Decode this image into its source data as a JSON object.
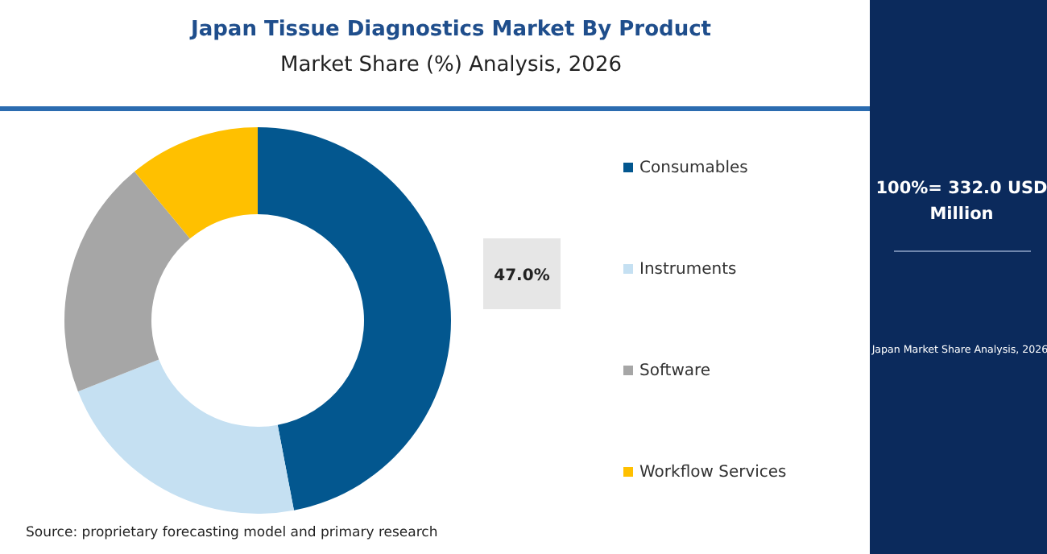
{
  "chart_data": {
    "type": "donut",
    "title": "Japan Tissue Diagnostics Market By Product",
    "subtitle": "Market Share (%) Analysis, 2026",
    "categories": [
      "Consumables",
      "Instruments",
      "Software",
      "Workflow Services"
    ],
    "values": [
      47,
      22,
      20,
      11
    ],
    "colors": [
      "#03578f",
      "#c5e0f2",
      "#a6a6a6",
      "#ffc000"
    ],
    "value_labels": [
      "47.0%",
      null,
      null,
      null
    ],
    "legend": "right",
    "annotations": [
      "100%= 332.0 USD Million",
      "Japan Market Share Analysis, 2026",
      "Source: proprietary forecasting model and primary research"
    ]
  }
}
